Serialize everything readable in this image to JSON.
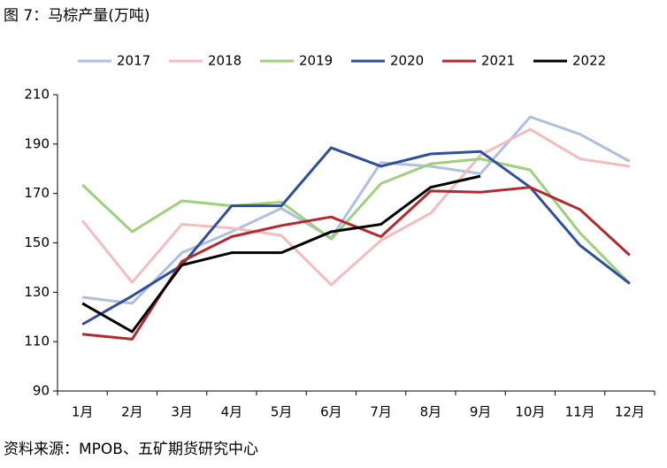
{
  "chart_data": {
    "type": "line",
    "title": "图 7：马棕产量(万吨)",
    "source": "资料来源：MPOB、五矿期货研究中心",
    "categories": [
      "1月",
      "2月",
      "3月",
      "4月",
      "5月",
      "6月",
      "7月",
      "8月",
      "9月",
      "10月",
      "11月",
      "12月"
    ],
    "series": [
      {
        "name": "2017",
        "color": "#aebfe2",
        "values": [
          128,
          125.5,
          146,
          154.5,
          164,
          152,
          182.5,
          181,
          178,
          201,
          194,
          183
        ]
      },
      {
        "name": "2018",
        "color": "#f4bcbc",
        "values": [
          159,
          134,
          157.5,
          156,
          153,
          133,
          151,
          162,
          185.5,
          196,
          184,
          181
        ]
      },
      {
        "name": "2019",
        "color": "#9fd07c",
        "values": [
          173.5,
          154.5,
          167,
          165,
          166.5,
          151.5,
          174,
          182,
          184,
          179.5,
          154,
          133.5
        ]
      },
      {
        "name": "2020",
        "color": "#2e4f9e",
        "values": [
          117,
          128.5,
          141,
          165,
          165,
          188.5,
          181,
          186,
          187,
          172.5,
          149,
          133.5
        ]
      },
      {
        "name": "2021",
        "color": "#b5282e",
        "values": [
          113,
          111,
          142.5,
          152.5,
          157,
          160.5,
          152.5,
          171,
          170.5,
          172.5,
          163.5,
          145
        ]
      },
      {
        "name": "2022",
        "color": "#000000",
        "values": [
          125.5,
          114,
          141,
          146,
          146,
          154.5,
          157.5,
          172.5,
          177,
          null,
          null,
          null
        ]
      }
    ],
    "ylim": [
      90,
      210
    ],
    "yticks": [
      90,
      110,
      130,
      150,
      170,
      190,
      210
    ],
    "legend": "top",
    "grid": false
  }
}
